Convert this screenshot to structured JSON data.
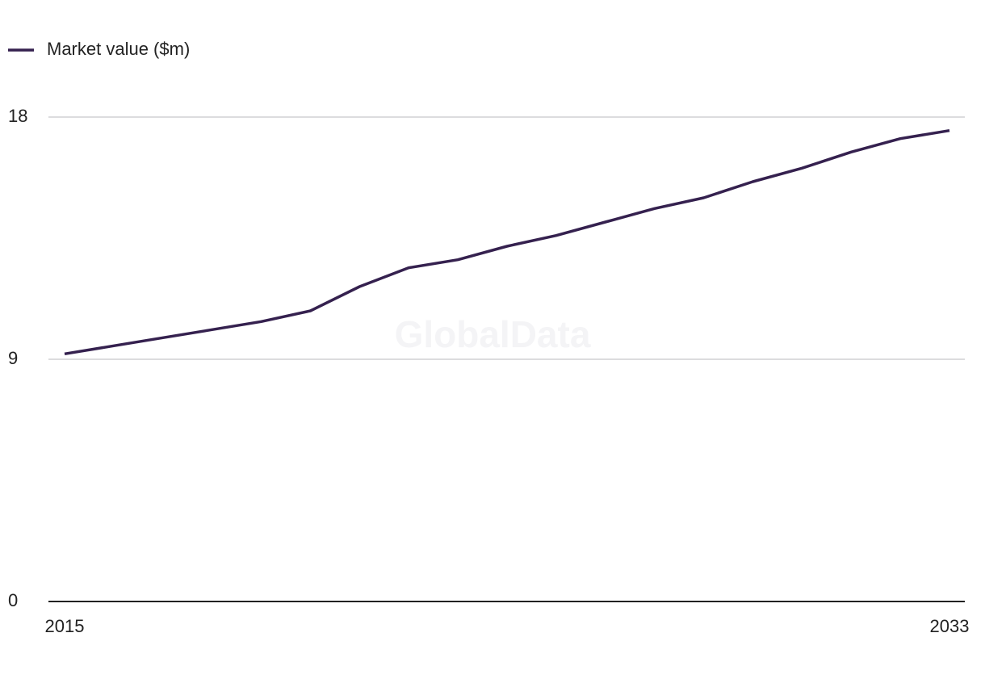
{
  "chart_data": {
    "type": "line",
    "watermark": "GlobalData",
    "x": [
      2015,
      2016,
      2017,
      2018,
      2019,
      2020,
      2021,
      2022,
      2023,
      2024,
      2025,
      2026,
      2027,
      2028,
      2029,
      2030,
      2031,
      2032,
      2033
    ],
    "xlim": [
      2015,
      2033
    ],
    "xticks": [
      2015,
      2033
    ],
    "ylim": [
      0,
      18
    ],
    "yticks": [
      0,
      9,
      18
    ],
    "grid": true,
    "legend": "top-left",
    "series": [
      {
        "name": "Market value ($m)",
        "color": "#35214f",
        "values": [
          9.2,
          9.5,
          9.8,
          10.1,
          10.4,
          10.8,
          11.7,
          12.4,
          12.7,
          13.2,
          13.6,
          14.1,
          14.6,
          15.0,
          15.6,
          16.1,
          16.7,
          17.2,
          17.5
        ]
      }
    ]
  }
}
